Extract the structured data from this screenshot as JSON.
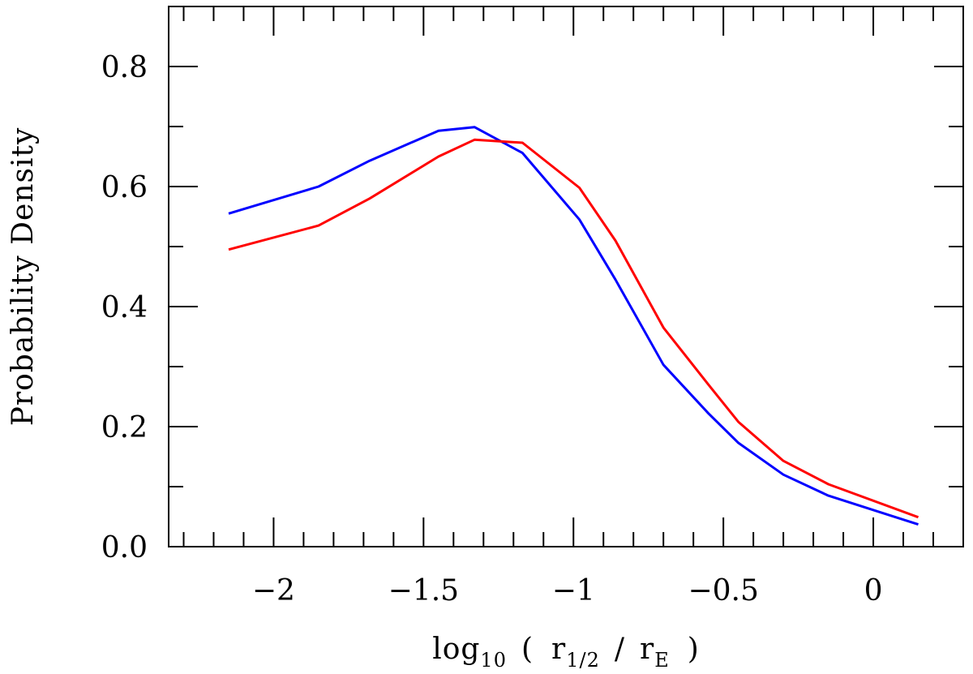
{
  "chart_data": {
    "type": "line",
    "xlabel": {
      "prefix": "log",
      "prefix_sub": "10",
      "open": "(",
      "num": "r",
      "num_sub": "1/2",
      "slash": "/",
      "den": "r",
      "den_sub": "E",
      "close": ")"
    },
    "ylabel": "Probability Density",
    "xlim": [
      -2.35,
      0.3
    ],
    "ylim": [
      0.0,
      0.9
    ],
    "x_ticks": [
      {
        "value": -2,
        "label": "−2"
      },
      {
        "value": -1.5,
        "label": "−1.5"
      },
      {
        "value": -1,
        "label": "−1"
      },
      {
        "value": -0.5,
        "label": "−0.5"
      },
      {
        "value": 0,
        "label": "0"
      }
    ],
    "x_minor_step": 0.1,
    "y_ticks": [
      {
        "value": 0.0,
        "label": "0.0"
      },
      {
        "value": 0.2,
        "label": "0.2"
      },
      {
        "value": 0.4,
        "label": "0.4"
      },
      {
        "value": 0.6,
        "label": "0.6"
      },
      {
        "value": 0.8,
        "label": "0.8"
      }
    ],
    "y_minor_step": 0.1,
    "grid": false,
    "series": [
      {
        "color": "#0000ff",
        "x": [
          -2.15,
          -1.85,
          -1.68,
          -1.45,
          -1.33,
          -1.17,
          -0.98,
          -0.86,
          -0.7,
          -0.55,
          -0.45,
          -0.3,
          -0.15,
          0.15
        ],
        "y": [
          0.555,
          0.6,
          0.643,
          0.693,
          0.699,
          0.656,
          0.545,
          0.445,
          0.303,
          0.222,
          0.173,
          0.12,
          0.085,
          0.037
        ]
      },
      {
        "color": "#ff0000",
        "x": [
          -2.15,
          -1.85,
          -1.68,
          -1.45,
          -1.33,
          -1.17,
          -0.98,
          -0.86,
          -0.7,
          -0.55,
          -0.45,
          -0.3,
          -0.15,
          0.15
        ],
        "y": [
          0.495,
          0.535,
          0.58,
          0.65,
          0.678,
          0.673,
          0.598,
          0.51,
          0.365,
          0.27,
          0.208,
          0.143,
          0.104,
          0.049
        ]
      }
    ]
  }
}
